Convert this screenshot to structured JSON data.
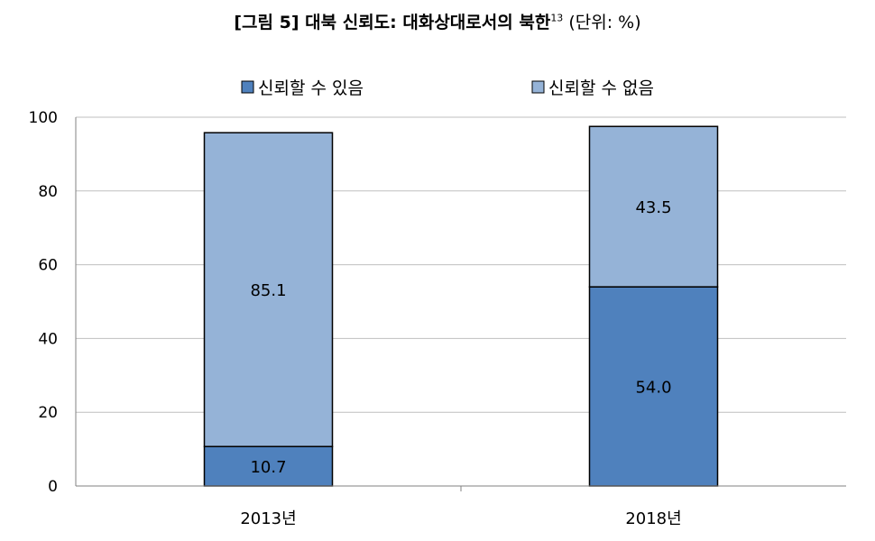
{
  "title": {
    "main": "[그림 5] 대북 신뢰도: 대화상대로서의 북한",
    "sup": "13",
    "unit": "(단위: %)"
  },
  "colors": {
    "trust": "#4f81bd",
    "no_trust": "#95b3d7",
    "grid": "#bfbfbf",
    "axis": "#808080",
    "bar_border": "#000000"
  },
  "chart_data": {
    "type": "bar",
    "stacked": true,
    "categories": [
      "2013년",
      "2018년"
    ],
    "series": [
      {
        "name": "신뢰할 수 있음",
        "values": [
          10.7,
          54.0
        ]
      },
      {
        "name": "신뢰할 수 없음",
        "values": [
          85.1,
          43.5
        ]
      }
    ],
    "value_labels": [
      [
        "10.7",
        "54.0"
      ],
      [
        "85.1",
        "43.5"
      ]
    ],
    "ylim": [
      0,
      100
    ],
    "yticks": [
      "0",
      "20",
      "40",
      "60",
      "80",
      "100"
    ],
    "grid": true,
    "legend": "top"
  }
}
